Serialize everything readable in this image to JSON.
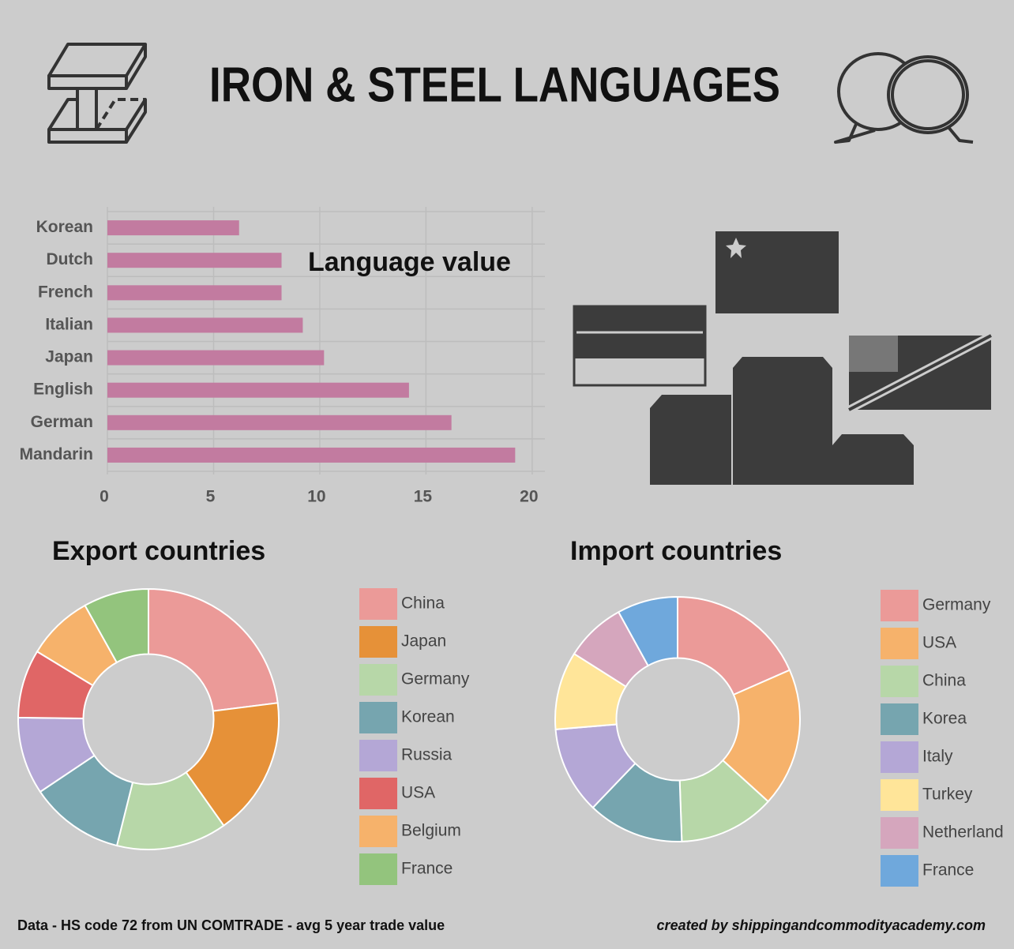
{
  "header": {
    "title": "IRON & STEEL LANGUAGES"
  },
  "chart_data": [
    {
      "type": "bar",
      "orientation": "horizontal",
      "title": "Language value",
      "categories": [
        "Korean",
        "Dutch",
        "French",
        "Italian",
        "Japan",
        "English",
        "German",
        "Mandarin"
      ],
      "values": [
        6.2,
        8.2,
        8.2,
        9.2,
        10.2,
        14.2,
        16.2,
        19.2
      ],
      "color": "#c27ba0",
      "xlim": [
        0,
        20.6
      ],
      "xticks": [
        0,
        5,
        10,
        15,
        20
      ],
      "grid": true
    },
    {
      "type": "donut",
      "title": "Export countries",
      "categories": [
        "China",
        "Japan",
        "Germany",
        "Korean",
        "Russia",
        "USA",
        "Belgium",
        "France"
      ],
      "values": [
        23,
        17.2,
        13.7,
        11.7,
        9.6,
        8.5,
        8.2,
        8.1
      ],
      "colors": [
        "#eb9a98",
        "#e69138",
        "#b7d7a8",
        "#76a5af",
        "#b4a7d6",
        "#e06666",
        "#f6b26b",
        "#93c47d"
      ]
    },
    {
      "type": "donut",
      "title": "Import countries",
      "categories": [
        "Germany",
        "USA",
        "China",
        "Korea",
        "Italy",
        "Turkey",
        "Netherland",
        "France"
      ],
      "values": [
        18.4,
        18.3,
        12.7,
        12.7,
        11.5,
        10.3,
        8,
        8
      ],
      "colors": [
        "#eb9a98",
        "#f6b26b",
        "#b7d7a8",
        "#76a5af",
        "#b4a7d6",
        "#ffe599",
        "#d5a6bd",
        "#6fa8dc"
      ]
    }
  ],
  "footer": {
    "source": "Data - HS code 72 from UN COMTRADE - avg 5 year trade value",
    "credit": "created by shippingandcommodityacademy.com"
  }
}
